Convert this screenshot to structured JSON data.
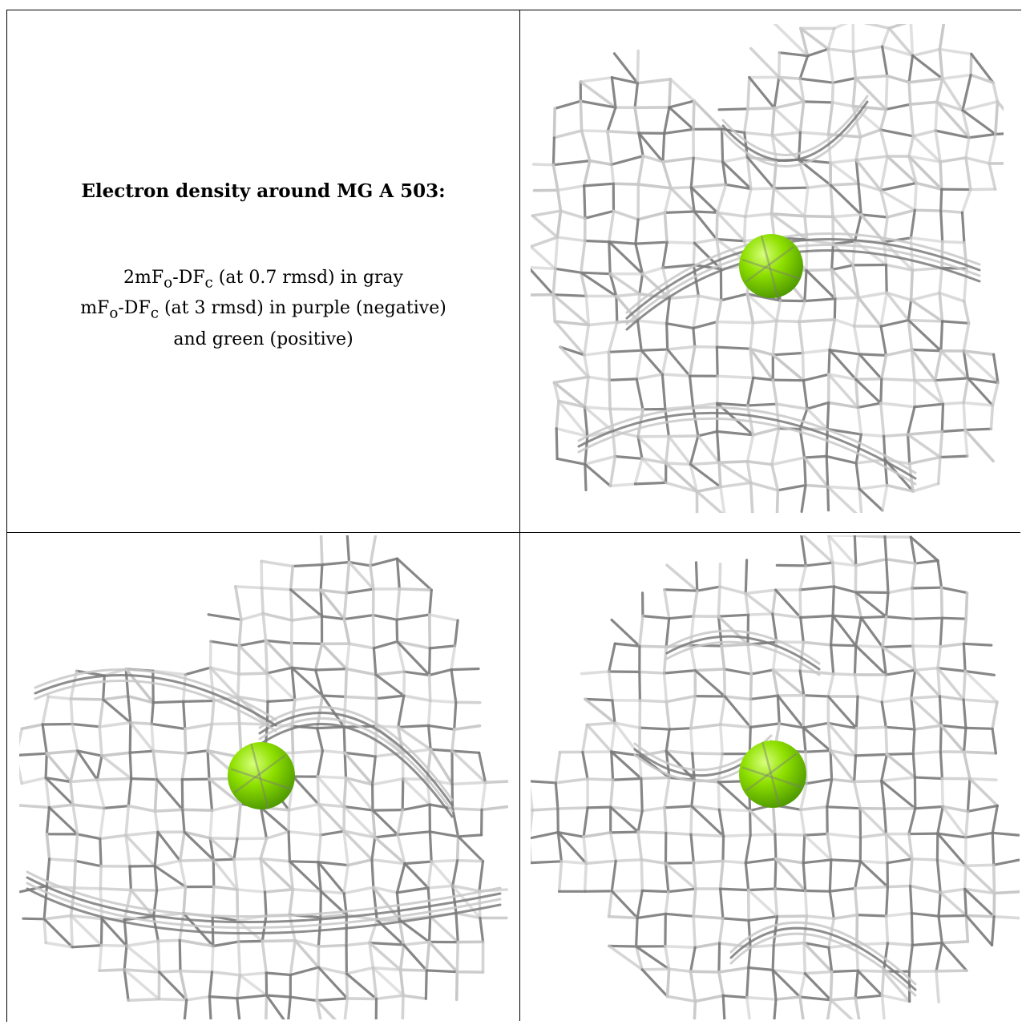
{
  "caption": {
    "title": "Electron density around MG A 503:",
    "line1_pre": "2mF",
    "line1_sub1": "o",
    "line1_mid": "-DF",
    "line1_sub2": "c",
    "line1_post": " (at 0.7 rmsd) in gray",
    "line2_pre": "mF",
    "line2_sub1": "o",
    "line2_mid": "-DF",
    "line2_sub2": "c",
    "line2_post": " (at 3 rmsd) in purple (negative)",
    "line3": "and green (positive)"
  },
  "panels": [
    {
      "id": "top-right",
      "view": "view-1"
    },
    {
      "id": "bottom-left",
      "view": "view-2"
    },
    {
      "id": "bottom-right",
      "view": "view-3"
    }
  ],
  "colors": {
    "mesh_light": "#c8c8c8",
    "mesh_dark": "#7a7a7a",
    "atom": "#8fe000",
    "atom_highlight": "#d6ff7a",
    "atom_shadow": "#4f9a00"
  }
}
